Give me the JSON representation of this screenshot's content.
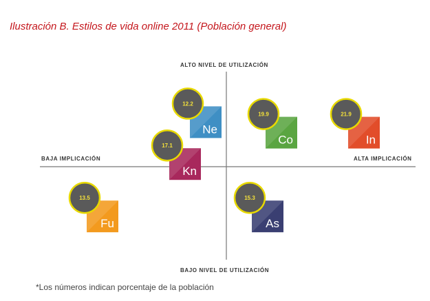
{
  "title": "Ilustración B. Estilos de vida online 2011 (Población general)",
  "footnote": "*Los números indican porcentaje de la población",
  "chart_data": {
    "type": "scatter",
    "title": "Ilustración B. Estilos de vida online 2011 (Población general)",
    "axes": {
      "top": "ALTO NIVEL DE UTILIZACIÓN",
      "bottom": "BAJO NIVEL DE UTILIZACIÓN",
      "left": "BAJA IMPLICACIÓN",
      "right": "ALTA IMPLICACIÓN"
    },
    "xlim": [
      -3,
      3
    ],
    "ylim": [
      -3,
      3
    ],
    "grid": false,
    "points": [
      {
        "code": "Ne",
        "value": 12.2,
        "x": -0.3,
        "y": 1.7,
        "color": "#3f8fc4"
      },
      {
        "code": "Co",
        "value": 19.9,
        "x": 0.8,
        "y": 1.3,
        "color": "#5aa541"
      },
      {
        "code": "In",
        "value": 21.9,
        "x": 2.0,
        "y": 1.3,
        "color": "#e24d2a"
      },
      {
        "code": "Kn",
        "value": 17.1,
        "x": -0.6,
        "y": 0.1,
        "color": "#a8285c"
      },
      {
        "code": "Fu",
        "value": 13.5,
        "x": -1.8,
        "y": -1.9,
        "color": "#f39a1e"
      },
      {
        "code": "As",
        "value": 15.3,
        "x": 0.6,
        "y": -1.9,
        "color": "#3a3f72"
      }
    ]
  }
}
